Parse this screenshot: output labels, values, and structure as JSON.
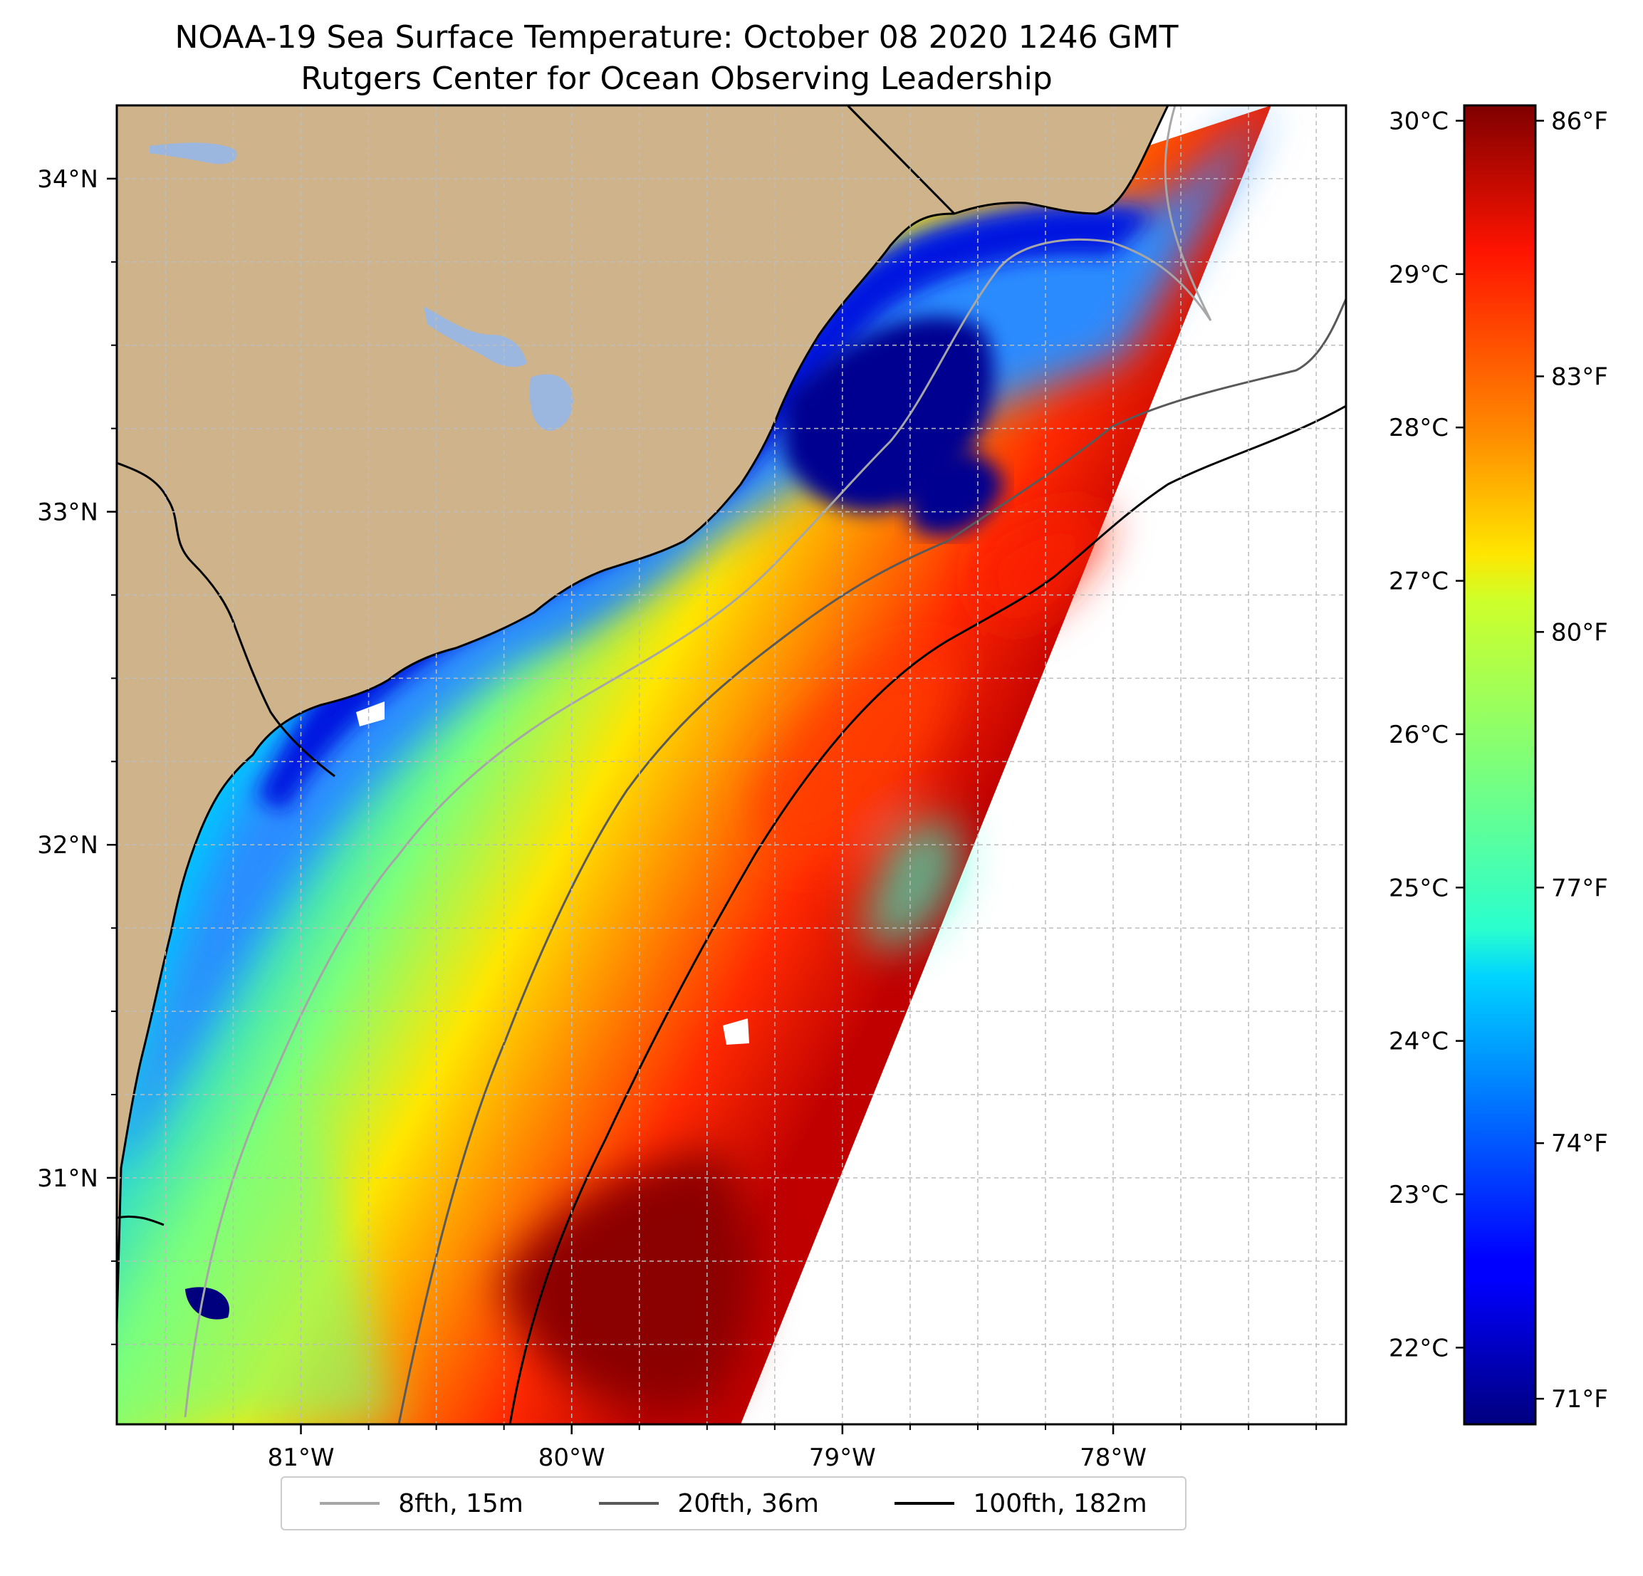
{
  "title": {
    "line1": "NOAA-19 Sea Surface Temperature: October 08 2020 1246 GMT",
    "line2": "Rutgers Center for Ocean Observing Leadership"
  },
  "map": {
    "lon_range": [
      -81.68,
      -77.14
    ],
    "lat_range": [
      30.26,
      34.22
    ],
    "grid": true,
    "land_color": "#cfb38b",
    "lake_color": "#9bb7df",
    "lon_ticks": [
      {
        "value": -81,
        "label": "81°W"
      },
      {
        "value": -80,
        "label": "80°W"
      },
      {
        "value": -79,
        "label": "79°W"
      },
      {
        "value": -78,
        "label": "78°W"
      }
    ],
    "lat_ticks": [
      {
        "value": 34,
        "label": "34°N"
      },
      {
        "value": 33,
        "label": "33°N"
      },
      {
        "value": 32,
        "label": "32°N"
      },
      {
        "value": 31,
        "label": "31°N"
      }
    ]
  },
  "colorbar": {
    "colormap": "jet",
    "range_c": [
      21.5,
      30.1
    ],
    "celsius_ticks": [
      "30°C",
      "29°C",
      "28°C",
      "27°C",
      "26°C",
      "25°C",
      "24°C",
      "23°C",
      "22°C"
    ],
    "fahrenheit_ticks": [
      "86°F",
      "83°F",
      "80°F",
      "77°F",
      "74°F",
      "71°F"
    ]
  },
  "legend": {
    "items": [
      {
        "label": "8fth, 15m",
        "color": "#a6a6a6"
      },
      {
        "label": "20fth, 36m",
        "color": "#595959"
      },
      {
        "label": "100fth, 182m",
        "color": "#000000"
      }
    ]
  }
}
